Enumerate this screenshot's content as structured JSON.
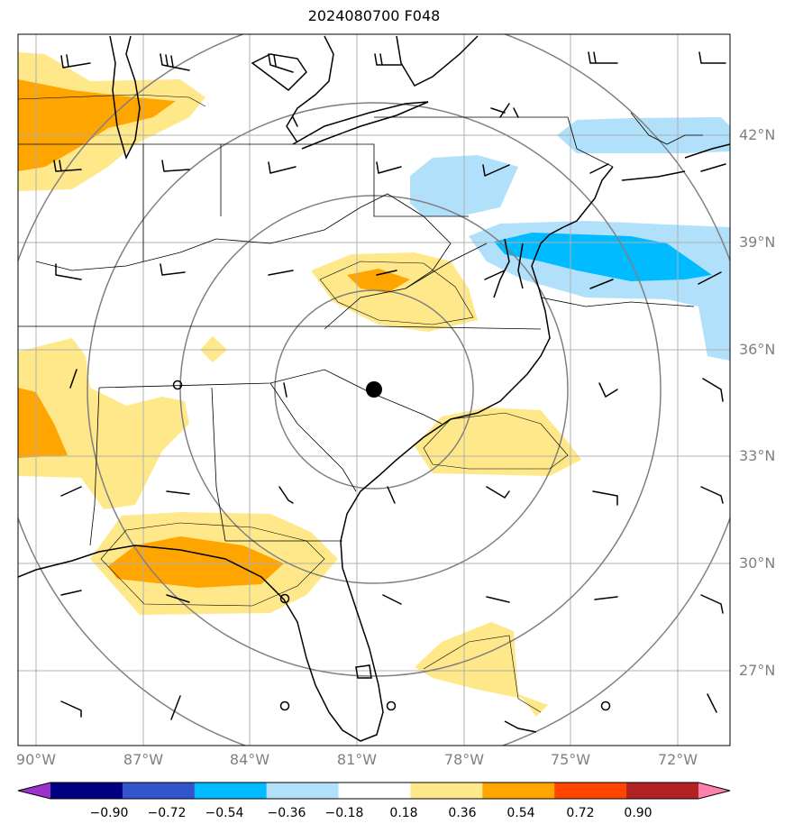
{
  "title": "2024080700 F048",
  "latitude_labels": [
    "42°N",
    "39°N",
    "36°N",
    "33°N",
    "30°N",
    "27°N"
  ],
  "longitude_labels": [
    "90°W",
    "87°W",
    "84°W",
    "81°W",
    "78°W",
    "75°W",
    "72°W"
  ],
  "colorbar": {
    "tick_labels": [
      "−0.90",
      "−0.72",
      "−0.54",
      "−0.36",
      "−0.18",
      "0.18",
      "0.36",
      "0.54",
      "0.72",
      "0.90"
    ],
    "colors": [
      "#9933cc",
      "#000080",
      "#3355cc",
      "#00bbff",
      "#b0e0fa",
      "#ffffff",
      "#ffe88a",
      "#ffa500",
      "#ff4500",
      "#b22222",
      "#ff80aa"
    ]
  },
  "fill_colors": {
    "light_yellow": "#ffe88a",
    "orange": "#ffa500",
    "light_blue": "#b0e0fa",
    "blue": "#00bbff"
  },
  "center_marker": "black-dot",
  "station_markers": "open-circles"
}
